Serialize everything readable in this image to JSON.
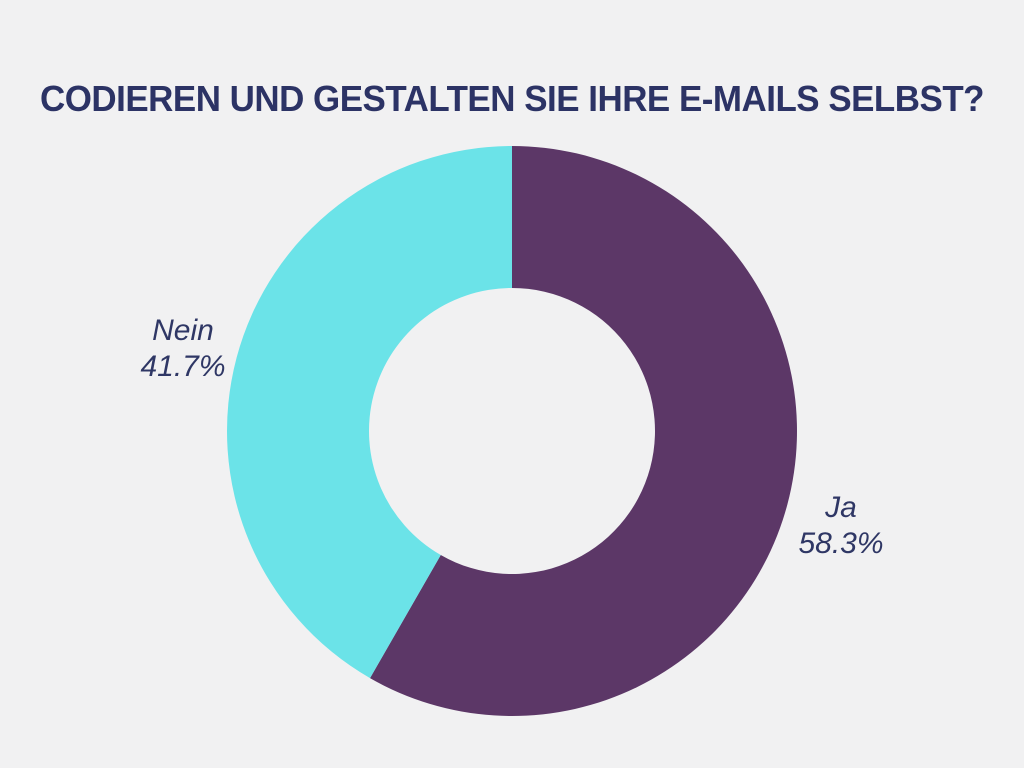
{
  "title": "CODIEREN UND GESTALTEN SIE IHRE E-MAILS SELBST?",
  "colors": {
    "background": "#F1F1F2",
    "title_text": "#2C3365",
    "label_text": "#2F3765"
  },
  "chart_data": {
    "type": "pie",
    "subtype": "donut",
    "title": "CODIEREN UND GESTALTEN SIE IHRE E-MAILS SELBST?",
    "start_angle_deg": 0,
    "direction": "clockwise",
    "inner_radius_ratio": 0.5,
    "legend_position": "none",
    "segments": [
      {
        "label": "Ja",
        "value": 58.3,
        "display": "58.3%",
        "color": "#5C3767"
      },
      {
        "label": "Nein",
        "value": 41.7,
        "display": "41.7%",
        "color": "#6BE3E8"
      }
    ]
  }
}
